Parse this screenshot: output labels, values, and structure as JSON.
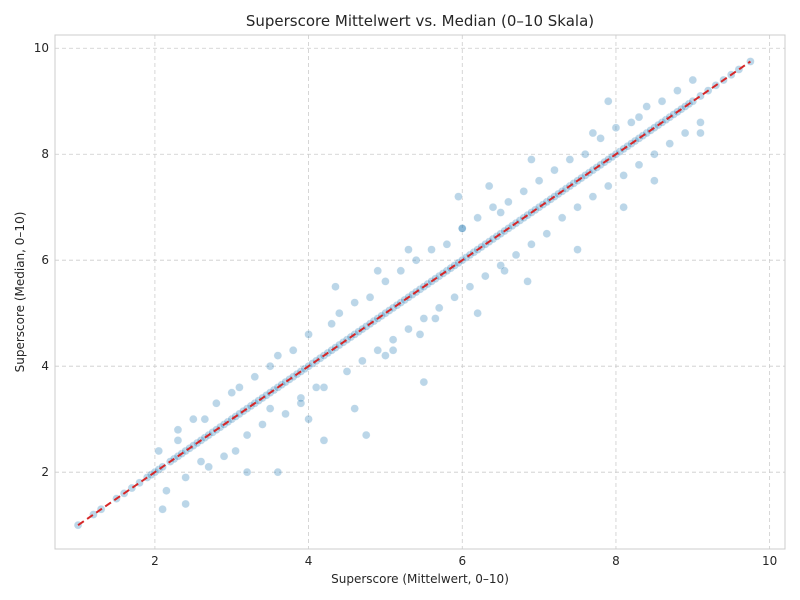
{
  "chart_data": {
    "type": "scatter",
    "title": "Superscore Mittelwert vs. Median (0–10 Skala)",
    "xlabel": "Superscore (Mittelwert, 0–10)",
    "ylabel": "Superscore (Median, 0–10)",
    "xlim": [
      0.7,
      10.2
    ],
    "ylim": [
      0.55,
      10.25
    ],
    "xticks": [
      2,
      4,
      6,
      8,
      10
    ],
    "yticks": [
      2,
      4,
      6,
      8,
      10
    ],
    "grid": true,
    "point_color": "#1f77b4",
    "point_alpha": 0.3,
    "reference_line": {
      "x": [
        1.0,
        9.75
      ],
      "y": [
        1.0,
        9.75
      ],
      "color": "#d62728",
      "style": "dashed"
    },
    "points": {
      "x": [
        1.0,
        1.2,
        1.3,
        1.5,
        1.6,
        1.7,
        1.8,
        1.9,
        1.95,
        2.0,
        2.05,
        2.1,
        2.2,
        2.25,
        2.3,
        2.35,
        2.4,
        2.45,
        2.5,
        2.55,
        2.6,
        2.65,
        2.7,
        2.75,
        2.8,
        2.85,
        2.9,
        2.95,
        3.0,
        3.05,
        3.1,
        3.15,
        3.2,
        3.25,
        3.3,
        3.35,
        3.4,
        3.45,
        3.5,
        3.55,
        3.6,
        3.65,
        3.7,
        3.75,
        3.8,
        3.85,
        3.9,
        3.95,
        4.0,
        4.05,
        4.1,
        4.15,
        4.2,
        4.25,
        4.3,
        4.35,
        4.4,
        4.45,
        4.5,
        4.55,
        4.6,
        4.65,
        4.7,
        4.75,
        4.8,
        4.85,
        4.9,
        4.95,
        5.0,
        5.05,
        5.1,
        5.15,
        5.2,
        5.25,
        5.3,
        5.35,
        5.4,
        5.45,
        5.5,
        5.55,
        5.6,
        5.65,
        5.7,
        5.75,
        5.8,
        5.85,
        5.9,
        5.95,
        6.0,
        6.05,
        6.1,
        6.15,
        6.2,
        6.25,
        6.3,
        6.35,
        6.4,
        6.45,
        6.5,
        6.55,
        6.6,
        6.65,
        6.7,
        6.75,
        6.8,
        6.85,
        6.9,
        6.95,
        7.0,
        7.05,
        7.1,
        7.15,
        7.2,
        7.25,
        7.3,
        7.35,
        7.4,
        7.45,
        7.5,
        7.55,
        7.6,
        7.65,
        7.7,
        7.75,
        7.8,
        7.85,
        7.9,
        7.95,
        8.0,
        8.05,
        8.1,
        8.15,
        8.2,
        8.25,
        8.3,
        8.35,
        8.4,
        8.45,
        8.5,
        8.55,
        8.6,
        8.65,
        8.7,
        8.75,
        8.8,
        8.85,
        8.9,
        8.95,
        9.0,
        9.1,
        9.2,
        9.3,
        9.4,
        9.5,
        9.6,
        9.75,
        2.3,
        2.5,
        2.8,
        3.0,
        3.1,
        3.3,
        3.5,
        3.6,
        3.8,
        4.0,
        4.3,
        4.4,
        4.6,
        4.8,
        5.0,
        5.2,
        5.4,
        5.6,
        5.8,
        6.0,
        6.2,
        6.4,
        6.6,
        6.8,
        7.0,
        7.2,
        7.4,
        7.6,
        7.8,
        8.0,
        8.2,
        8.4,
        8.6,
        8.8,
        9.0,
        2.1,
        2.4,
        2.6,
        2.9,
        3.2,
        3.4,
        3.7,
        3.9,
        4.1,
        4.2,
        4.5,
        4.7,
        4.9,
        5.1,
        5.3,
        5.5,
        5.7,
        5.9,
        6.1,
        6.3,
        6.5,
        6.7,
        6.9,
        7.1,
        7.3,
        7.5,
        7.7,
        7.9,
        8.1,
        8.3,
        8.5,
        8.7,
        8.9,
        9.1,
        2.05,
        2.3,
        2.65,
        3.6,
        3.2,
        4.2,
        4.75,
        5.5,
        6.2,
        6.85,
        7.5,
        8.1,
        8.5,
        9.1,
        5.95,
        6.35,
        6.9,
        7.7,
        7.9,
        8.3,
        4.35,
        4.9,
        5.3,
        6.0,
        5.1,
        5.45,
        6.55,
        5.65,
        6.5,
        5.0,
        4.6,
        4.0,
        3.9,
        3.5,
        3.05,
        2.7,
        2.4,
        2.15
      ],
      "y": [
        1.0,
        1.2,
        1.3,
        1.5,
        1.6,
        1.7,
        1.8,
        1.9,
        1.95,
        2.0,
        2.05,
        2.1,
        2.2,
        2.25,
        2.3,
        2.35,
        2.4,
        2.45,
        2.5,
        2.55,
        2.6,
        2.65,
        2.7,
        2.75,
        2.8,
        2.85,
        2.9,
        2.95,
        3.0,
        3.05,
        3.1,
        3.15,
        3.2,
        3.25,
        3.3,
        3.35,
        3.4,
        3.45,
        3.5,
        3.55,
        3.6,
        3.65,
        3.7,
        3.75,
        3.8,
        3.85,
        3.9,
        3.95,
        4.0,
        4.05,
        4.1,
        4.15,
        4.2,
        4.25,
        4.3,
        4.35,
        4.4,
        4.45,
        4.5,
        4.55,
        4.6,
        4.65,
        4.7,
        4.75,
        4.8,
        4.85,
        4.9,
        4.95,
        5.0,
        5.05,
        5.1,
        5.15,
        5.2,
        5.25,
        5.3,
        5.35,
        5.4,
        5.45,
        5.5,
        5.55,
        5.6,
        5.65,
        5.7,
        5.75,
        5.8,
        5.85,
        5.9,
        5.95,
        6.0,
        6.05,
        6.1,
        6.15,
        6.2,
        6.25,
        6.3,
        6.35,
        6.4,
        6.45,
        6.5,
        6.55,
        6.6,
        6.65,
        6.7,
        6.75,
        6.8,
        6.85,
        6.9,
        6.95,
        7.0,
        7.05,
        7.1,
        7.15,
        7.2,
        7.25,
        7.3,
        7.35,
        7.4,
        7.45,
        7.5,
        7.55,
        7.6,
        7.65,
        7.7,
        7.75,
        7.8,
        7.85,
        7.9,
        7.95,
        8.0,
        8.05,
        8.1,
        8.15,
        8.2,
        8.25,
        8.3,
        8.35,
        8.4,
        8.45,
        8.5,
        8.55,
        8.6,
        8.65,
        8.7,
        8.75,
        8.8,
        8.85,
        8.9,
        8.95,
        9.0,
        9.1,
        9.2,
        9.3,
        9.4,
        9.5,
        9.6,
        9.75,
        2.8,
        3.0,
        3.3,
        3.5,
        3.6,
        3.8,
        4.0,
        4.2,
        4.3,
        4.6,
        4.8,
        5.0,
        5.2,
        5.3,
        5.6,
        5.8,
        6.0,
        6.2,
        6.3,
        6.6,
        6.8,
        7.0,
        7.1,
        7.3,
        7.5,
        7.7,
        7.9,
        8.0,
        8.3,
        8.5,
        8.6,
        8.9,
        9.0,
        9.2,
        9.4,
        1.3,
        1.9,
        2.2,
        2.3,
        2.7,
        2.9,
        3.1,
        3.4,
        3.6,
        3.6,
        3.9,
        4.1,
        4.3,
        4.5,
        4.7,
        4.9,
        5.1,
        5.3,
        5.5,
        5.7,
        5.9,
        6.1,
        6.3,
        6.5,
        6.8,
        7.0,
        7.2,
        7.4,
        7.6,
        7.8,
        8.0,
        8.2,
        8.4,
        8.6,
        2.4,
        2.6,
        3.0,
        2.0,
        2.0,
        2.6,
        2.7,
        3.7,
        5.0,
        5.6,
        6.2,
        7.0,
        7.5,
        8.4,
        7.2,
        7.4,
        7.9,
        8.4,
        9.0,
        8.7,
        5.5,
        5.8,
        6.2,
        6.6,
        4.3,
        4.6,
        5.8,
        4.9,
        6.9,
        4.2,
        3.2,
        3.0,
        3.3,
        3.2,
        2.4,
        2.1,
        1.4,
        1.65
      ]
    }
  }
}
